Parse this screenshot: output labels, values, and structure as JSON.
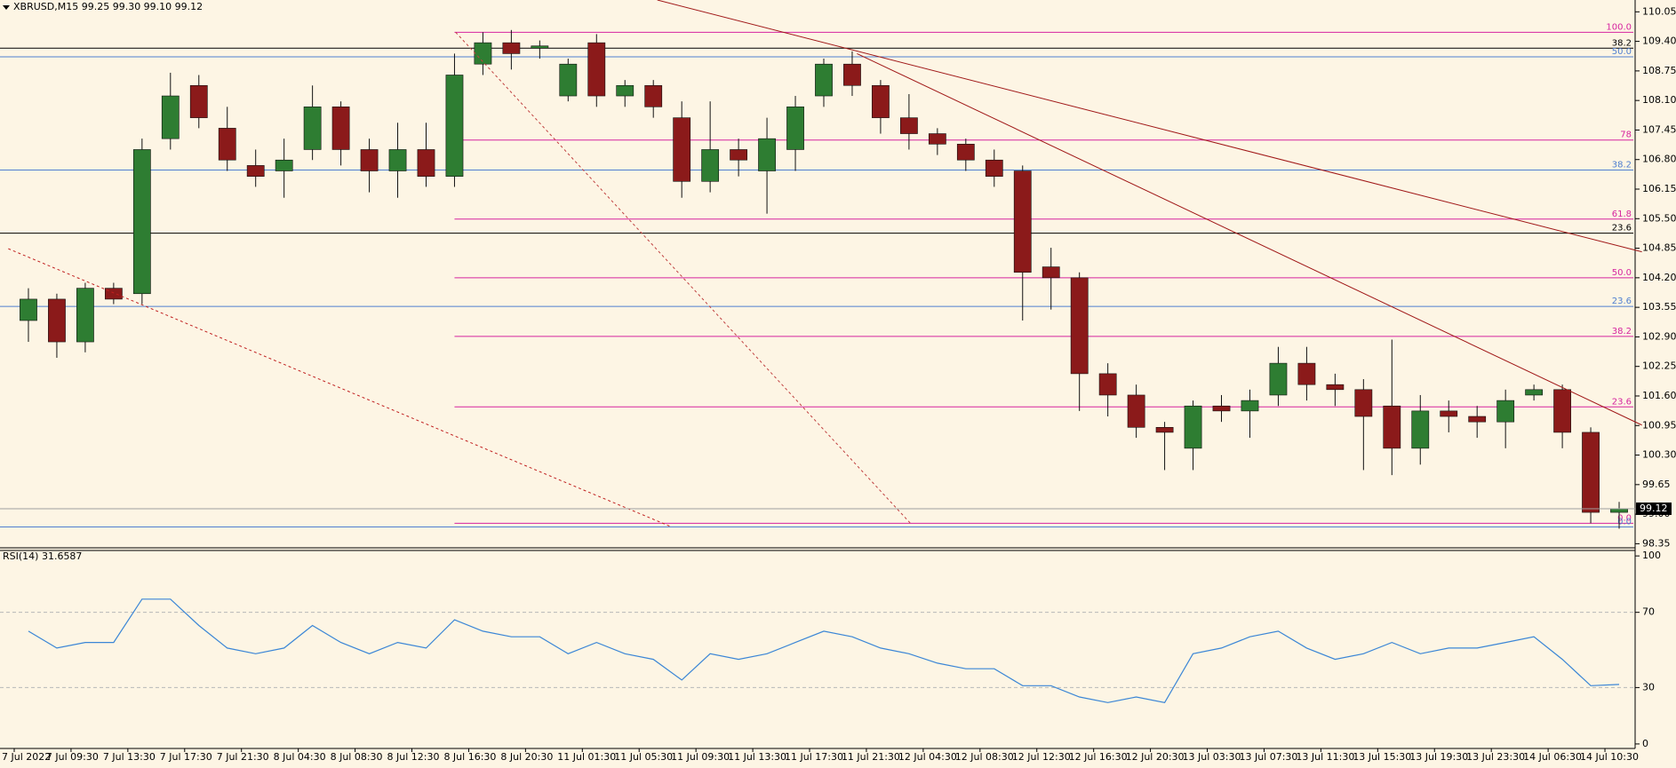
{
  "chart_data": [
    {
      "type": "candlestick",
      "title": "XBRUSD,M15  99.25 99.30 99.10 99.12",
      "categories": [
        "7 Jul 2022",
        null,
        "7 Jul 09:30",
        null,
        "7 Jul 13:30",
        null,
        "7 Jul 17:30",
        null,
        "7 Jul 21:30",
        null,
        "8 Jul 04:30",
        null,
        "8 Jul 08:30",
        null,
        "8 Jul 12:30",
        null,
        "8 Jul 16:30",
        null,
        "8 Jul 20:30",
        null,
        "11 Jul 01:30",
        null,
        "11 Jul 05:30",
        null,
        "11 Jul 09:30",
        null,
        "11 Jul 13:30",
        null,
        "11 Jul 17:30",
        null,
        "11 Jul 21:30",
        null,
        "12 Jul 04:30",
        null,
        "12 Jul 08:30",
        null,
        "12 Jul 12:30",
        null,
        "12 Jul 16:30",
        null,
        "12 Jul 20:30",
        null,
        "13 Jul 03:30",
        null,
        "13 Jul 07:30",
        null,
        "13 Jul 11:30",
        null,
        "13 Jul 15:30",
        null,
        "13 Jul 19:30",
        null,
        "13 Jul 23:30",
        null,
        "14 Jul 06:30",
        null,
        "14 Jul 10:30"
      ],
      "open": [
        103.26,
        103.73,
        102.79,
        103.97,
        103.85,
        107.26,
        108.43,
        107.49,
        106.67,
        106.55,
        107.02,
        107.96,
        107.02,
        106.55,
        107.02,
        106.43,
        108.9,
        109.37,
        109.25,
        108.2,
        109.37,
        108.2,
        108.43,
        107.72,
        106.32,
        107.02,
        106.55,
        107.02,
        108.2,
        108.9,
        108.43,
        107.72,
        107.37,
        107.14,
        106.79,
        106.55,
        104.44,
        104.2,
        102.09,
        101.62,
        100.91,
        100.45,
        101.38,
        101.27,
        101.62,
        102.32,
        101.85,
        101.74,
        101.38,
        100.45,
        101.27,
        101.15,
        101.03,
        101.62,
        101.74,
        100.8,
        99.04
      ],
      "high": [
        103.97,
        103.85,
        104.09,
        104.09,
        107.26,
        108.71,
        108.66,
        107.96,
        107.02,
        107.26,
        108.43,
        108.08,
        107.26,
        107.61,
        107.61,
        109.13,
        109.6,
        109.65,
        109.42,
        109.02,
        109.56,
        108.55,
        108.55,
        108.08,
        108.08,
        107.26,
        107.72,
        108.2,
        109.02,
        109.18,
        108.55,
        108.24,
        107.49,
        107.26,
        107.02,
        106.67,
        104.86,
        104.32,
        102.32,
        101.85,
        101.03,
        101.5,
        101.62,
        101.74,
        102.68,
        102.68,
        102.09,
        101.97,
        102.84,
        101.62,
        101.5,
        101.38,
        101.74,
        101.85,
        101.85,
        100.91,
        99.27
      ],
      "low": [
        102.79,
        102.44,
        102.56,
        103.62,
        103.62,
        107.02,
        107.49,
        106.55,
        106.2,
        105.96,
        106.79,
        106.67,
        106.08,
        105.96,
        106.2,
        106.2,
        108.66,
        108.78,
        109.02,
        108.08,
        107.96,
        107.96,
        107.72,
        105.96,
        106.08,
        106.43,
        105.61,
        106.55,
        107.96,
        108.2,
        107.37,
        107.02,
        106.9,
        106.55,
        106.2,
        103.26,
        103.5,
        101.27,
        101.15,
        100.68,
        99.97,
        99.97,
        101.03,
        100.68,
        101.38,
        101.5,
        101.38,
        99.97,
        99.86,
        100.09,
        100.8,
        100.68,
        100.45,
        101.5,
        100.45,
        98.8,
        98.68
      ],
      "close": [
        103.73,
        102.79,
        103.97,
        103.73,
        107.02,
        108.2,
        107.72,
        106.79,
        106.43,
        106.79,
        107.96,
        107.02,
        106.55,
        107.02,
        106.43,
        108.66,
        109.37,
        109.13,
        109.3,
        108.9,
        108.2,
        108.43,
        107.96,
        106.32,
        107.02,
        106.79,
        107.26,
        107.96,
        108.9,
        108.43,
        107.72,
        107.37,
        107.14,
        106.79,
        106.43,
        104.32,
        104.2,
        102.09,
        101.62,
        100.91,
        100.8,
        101.38,
        101.27,
        101.5,
        102.32,
        101.85,
        101.74,
        101.15,
        100.45,
        101.27,
        101.15,
        101.03,
        101.5,
        101.74,
        100.8,
        99.04,
        99.12
      ],
      "up_color": "#2e7d32",
      "down_color": "#8b1a1a",
      "ylim": [
        98.26,
        110.31
      ],
      "yticks": [
        110.05,
        {
          "value": 109.4,
          "label": "109.40"
        },
        108.75,
        {
          "value": 108.1,
          "label": "108.10"
        },
        107.45,
        {
          "value": 106.8,
          "label": "106.80"
        },
        106.15,
        {
          "value": 105.5,
          "label": "105.50"
        },
        104.85,
        {
          "value": 104.2,
          "label": "104.20"
        },
        103.55,
        {
          "value": 102.9,
          "label": "102.90"
        },
        102.25,
        {
          "value": 101.6,
          "label": "101.60"
        },
        100.95,
        {
          "value": 100.3,
          "label": "100.30"
        },
        99.65,
        {
          "value": 99,
          "label": "99.00"
        },
        98.35
      ],
      "levels": [
        {
          "label": "100.0",
          "value": 109.6,
          "color": "#d6249f",
          "x_start": 15
        },
        {
          "label": "38.2",
          "value": 109.25,
          "color": "#000000"
        },
        {
          "label": "50.0",
          "value": 109.06,
          "color": "#4f7fd0"
        },
        {
          "label": "78",
          "value": 107.23,
          "color": "#d6249f",
          "x_start": 15
        },
        {
          "label": "38.2",
          "value": 106.57,
          "color": "#4f7fd0"
        },
        {
          "label": "61.8",
          "value": 105.49,
          "color": "#d6249f",
          "x_start": 15
        },
        {
          "label": "23.6",
          "value": 105.18,
          "color": "#000000"
        },
        {
          "label": "50.0",
          "value": 104.2,
          "color": "#d6249f",
          "x_start": 15
        },
        {
          "label": "23.6",
          "value": 103.57,
          "color": "#4f7fd0"
        },
        {
          "label": "38.2",
          "value": 102.91,
          "color": "#d6249f",
          "x_start": 15
        },
        {
          "label": "23.6",
          "value": 101.36,
          "color": "#d6249f",
          "x_start": 15
        },
        {
          "label": "0.0",
          "value": 98.8,
          "color": "#d6249f",
          "x_start": 15
        },
        {
          "label": "0.0",
          "value": 98.72,
          "color": "#4f7fd0"
        }
      ],
      "trendlines": [
        {
          "x": [
            22.14,
            56.8
          ],
          "y": [
            110.31,
            104.77
          ],
          "style": "solid",
          "color": "#a01818"
        },
        {
          "x": [
            29.17,
            56.8
          ],
          "y": [
            109.13,
            100.96
          ],
          "style": "solid",
          "color": "#a01818"
        },
        {
          "x": [
            -0.71,
            22.6
          ],
          "y": [
            104.84,
            98.73
          ],
          "style": "dashed",
          "color": "#c02020"
        },
        {
          "x": [
            15.04,
            31.05
          ],
          "y": [
            109.6,
            98.8
          ],
          "style": "dashed",
          "color": "#c04040"
        }
      ]
    },
    {
      "type": "line",
      "title": "RSI(14) 31.6587",
      "color": "#3b86d6",
      "values": [
        60,
        51,
        54,
        54,
        77,
        77,
        63,
        51,
        48,
        51,
        63,
        54,
        48,
        54,
        51,
        66,
        60,
        57,
        57,
        48,
        54,
        48,
        45,
        34,
        48,
        45,
        48,
        54,
        60,
        57,
        51,
        48,
        43,
        40,
        40,
        31,
        31,
        25,
        22,
        25,
        22,
        48,
        51,
        57,
        60,
        51,
        45,
        48,
        54,
        48,
        51,
        51,
        54,
        57,
        45,
        31,
        31.6587
      ],
      "ylim": [
        -2.4,
        102.9
      ],
      "yticks": [
        0,
        30,
        70,
        100
      ]
    }
  ]
}
